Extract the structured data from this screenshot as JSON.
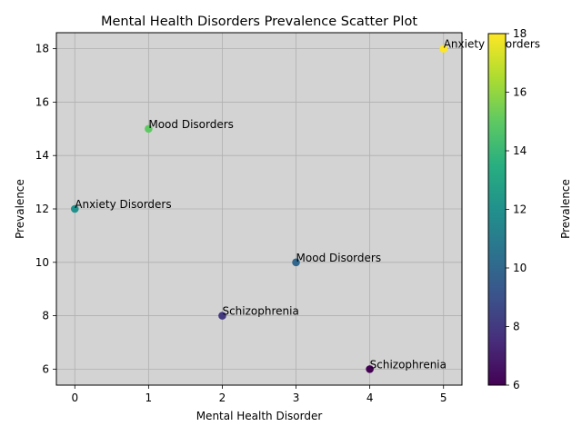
{
  "chart_data": {
    "type": "scatter",
    "title": "Mental Health Disorders Prevalence Scatter Plot",
    "xlabel": "Mental Health Disorder",
    "ylabel": "Prevalence",
    "xlim": [
      -0.25,
      5.25
    ],
    "ylim": [
      5.4,
      18.6
    ],
    "xticks": [
      0,
      1,
      2,
      3,
      4,
      5
    ],
    "yticks": [
      6,
      8,
      10,
      12,
      14,
      16,
      18
    ],
    "grid": true,
    "background_color": "#d3d3d3",
    "colormap": "viridis",
    "points": [
      {
        "x": 0,
        "y": 12,
        "label": "Anxiety Disorders"
      },
      {
        "x": 1,
        "y": 15,
        "label": "Mood Disorders"
      },
      {
        "x": 2,
        "y": 8,
        "label": "Schizophrenia"
      },
      {
        "x": 3,
        "y": 10,
        "label": "Mood Disorders"
      },
      {
        "x": 4,
        "y": 6,
        "label": "Schizophrenia"
      },
      {
        "x": 5,
        "y": 18,
        "label": "Anxiety Disorders"
      }
    ],
    "colorbar": {
      "label": "Prevalence",
      "range": [
        6,
        18
      ],
      "ticks": [
        6,
        8,
        10,
        12,
        14,
        16,
        18
      ]
    }
  }
}
